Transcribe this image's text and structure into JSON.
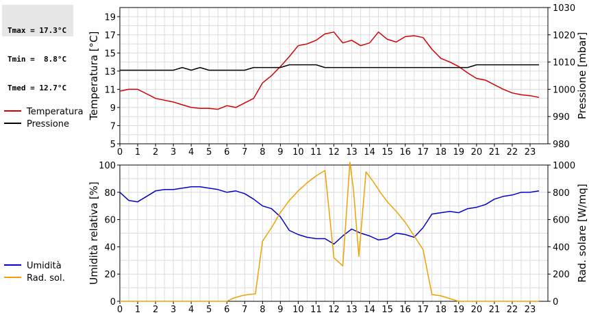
{
  "stats": {
    "tmax": "Tmax = 17.3°C",
    "tmin": "Tmin =  8.8°C",
    "tmed": "Tmed = 12.7°C"
  },
  "chart_data": [
    {
      "type": "line",
      "ylabel": "Temperatura [°C]",
      "y2label": "Pressione [mbar]",
      "ylim": [
        5,
        20
      ],
      "y2lim": [
        980,
        1030
      ],
      "yticks": [
        "5",
        "7",
        "9",
        "11",
        "13",
        "15",
        "17",
        "19"
      ],
      "y2ticks": [
        "980",
        "990",
        "1000",
        "1010",
        "1020",
        "1030"
      ],
      "xticks": [
        "0",
        "1",
        "2",
        "3",
        "4",
        "5",
        "6",
        "7",
        "8",
        "9",
        "10",
        "11",
        "12",
        "13",
        "14",
        "15",
        "16",
        "17",
        "18",
        "19",
        "20",
        "21",
        "22",
        "23"
      ],
      "xlim": [
        0,
        24
      ],
      "grid": true,
      "legend_position": "left",
      "series": [
        {
          "name": "Temperatura",
          "axis": "left",
          "color": "#d40000",
          "x": [
            0,
            0.5,
            1,
            1.5,
            2,
            2.5,
            3,
            3.5,
            4,
            4.5,
            5,
            5.5,
            6,
            6.5,
            7,
            7.5,
            8,
            8.5,
            9,
            9.5,
            10,
            10.5,
            11,
            11.5,
            12,
            12.5,
            13,
            13.5,
            14,
            14.5,
            15,
            15.5,
            16,
            16.5,
            17,
            17.5,
            18,
            18.5,
            19,
            19.5,
            20,
            20.5,
            21,
            21.5,
            22,
            22.5,
            23,
            23.5
          ],
          "values": [
            10.8,
            11.0,
            11.0,
            10.5,
            10.0,
            9.8,
            9.6,
            9.3,
            9.0,
            8.9,
            8.9,
            8.8,
            9.2,
            9.0,
            9.5,
            10.0,
            11.7,
            12.5,
            13.5,
            14.6,
            15.8,
            16.0,
            16.4,
            17.1,
            17.3,
            16.1,
            16.4,
            15.8,
            16.1,
            17.3,
            16.5,
            16.2,
            16.8,
            16.9,
            16.7,
            15.4,
            14.4,
            14.0,
            13.5,
            12.8,
            12.2,
            12.0,
            11.5,
            11.0,
            10.6,
            10.4,
            10.3,
            10.1
          ]
        },
        {
          "name": "Pressione",
          "axis": "right",
          "color": "#000000",
          "x": [
            0,
            0.5,
            1,
            1.5,
            2,
            2.5,
            3,
            3.5,
            4,
            4.5,
            5,
            5.5,
            6,
            6.5,
            7,
            7.5,
            8,
            8.5,
            9,
            9.5,
            10,
            10.5,
            11,
            11.5,
            12,
            12.5,
            13,
            13.5,
            14,
            14.5,
            15,
            15.5,
            16,
            16.5,
            17,
            17.5,
            18,
            18.5,
            19,
            19.5,
            20,
            20.5,
            21,
            21.5,
            22,
            22.5,
            23,
            23.5
          ],
          "values": [
            1007,
            1007,
            1007,
            1007,
            1007,
            1007,
            1007,
            1008,
            1007,
            1008,
            1007,
            1007,
            1007,
            1007,
            1007,
            1008,
            1008,
            1008,
            1008,
            1009,
            1009,
            1009,
            1009,
            1008,
            1008,
            1008,
            1008,
            1008,
            1008,
            1008,
            1008,
            1008,
            1008,
            1008,
            1008,
            1008,
            1008,
            1008,
            1008,
            1008,
            1009,
            1009,
            1009,
            1009,
            1009,
            1009,
            1009,
            1009
          ]
        }
      ]
    },
    {
      "type": "line",
      "ylabel": "Umidità relativa [%]",
      "y2label": "Rad. solare [W/mq]",
      "ylim": [
        0,
        100
      ],
      "y2lim": [
        0,
        1000
      ],
      "yticks": [
        "0",
        "20",
        "40",
        "60",
        "80",
        "100"
      ],
      "y2ticks": [
        "0",
        "200",
        "400",
        "600",
        "800",
        "1000"
      ],
      "xticks": [
        "0",
        "1",
        "2",
        "3",
        "4",
        "5",
        "6",
        "7",
        "8",
        "9",
        "10",
        "11",
        "12",
        "13",
        "14",
        "15",
        "16",
        "17",
        "18",
        "19",
        "20",
        "21",
        "22",
        "23"
      ],
      "xlim": [
        0,
        24
      ],
      "grid": true,
      "legend_position": "left",
      "series": [
        {
          "name": "Umidità",
          "axis": "left",
          "color": "#0000cc",
          "x": [
            0,
            0.5,
            1,
            1.5,
            2,
            2.5,
            3,
            3.5,
            4,
            4.5,
            5,
            5.5,
            6,
            6.5,
            7,
            7.5,
            8,
            8.5,
            9,
            9.5,
            10,
            10.5,
            11,
            11.5,
            12,
            12.5,
            13,
            13.5,
            14,
            14.5,
            15,
            15.5,
            16,
            16.5,
            17,
            17.5,
            18,
            18.5,
            19,
            19.5,
            20,
            20.5,
            21,
            21.5,
            22,
            22.5,
            23,
            23.5
          ],
          "values": [
            80,
            74,
            73,
            77,
            81,
            82,
            82,
            83,
            84,
            84,
            83,
            82,
            80,
            81,
            79,
            75,
            70,
            68,
            62,
            52,
            49,
            47,
            46,
            46,
            42,
            48,
            53,
            50,
            48,
            45,
            46,
            50,
            49,
            47,
            54,
            64,
            65,
            66,
            65,
            68,
            69,
            71,
            75,
            77,
            78,
            80,
            80,
            81
          ]
        },
        {
          "name": "Rad. sol.",
          "axis": "right",
          "color": "#f0a000",
          "x": [
            0,
            0.5,
            1,
            1.5,
            2,
            2.5,
            3,
            3.5,
            4,
            4.5,
            5,
            5.5,
            6,
            6.3,
            6.8,
            7.2,
            7.6,
            8,
            8.5,
            9,
            9.5,
            10,
            10.5,
            11,
            11.5,
            12,
            12.5,
            12.9,
            13.1,
            13.4,
            13.8,
            14.2,
            14.6,
            15,
            15.5,
            16,
            16.5,
            17,
            17.5,
            18,
            18.5,
            19,
            19.5,
            20,
            20.5,
            21,
            21.5,
            22,
            22.5,
            23,
            23.5
          ],
          "values": [
            0,
            0,
            0,
            0,
            0,
            0,
            0,
            0,
            0,
            0,
            0,
            0,
            0,
            20,
            40,
            50,
            55,
            440,
            540,
            650,
            740,
            810,
            870,
            920,
            960,
            320,
            260,
            1020,
            820,
            330,
            950,
            880,
            800,
            730,
            660,
            580,
            480,
            380,
            50,
            40,
            20,
            0,
            0,
            0,
            0,
            0,
            0,
            0,
            0,
            0,
            0
          ]
        }
      ]
    }
  ]
}
